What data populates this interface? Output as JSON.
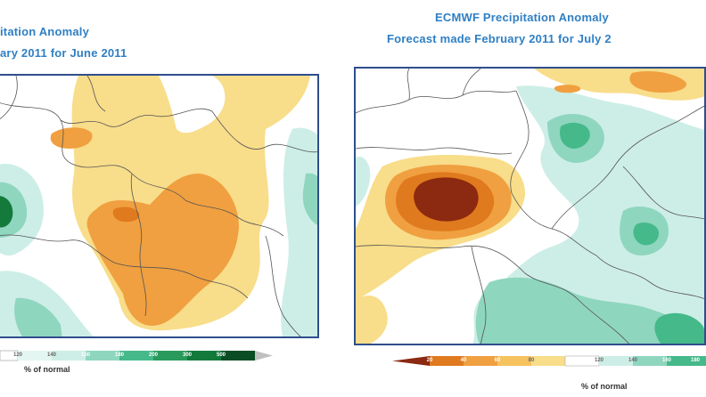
{
  "left_map": {
    "title_line1": "itation Anomaly",
    "title_line2": "ary 2011 for June 2011",
    "legend": {
      "ticks": [
        "120",
        "140",
        "150",
        "180",
        "200",
        "300",
        "500"
      ],
      "unit_label": "% of normal"
    }
  },
  "right_map": {
    "title_line1": "ECMWF Precipitation Anomaly",
    "title_line2": "Forecast made February 2011 for July 2",
    "legend": {
      "ticks": [
        "20",
        "40",
        "60",
        "80",
        "120",
        "140",
        "160",
        "180"
      ],
      "unit_label": "% of normal"
    }
  },
  "colors": {
    "frame": "#2f4e8c",
    "title": "#2f7fc4",
    "dry_light": "#f8dd8a",
    "dry_mid": "#f0a040",
    "dry_strong": "#e07a1e",
    "dry_extreme": "#8b2a10",
    "wet_light": "#cdeee6",
    "wet_mid": "#8fd6bf",
    "wet_strong": "#45b98a",
    "wet_extreme": "#137a3c"
  }
}
